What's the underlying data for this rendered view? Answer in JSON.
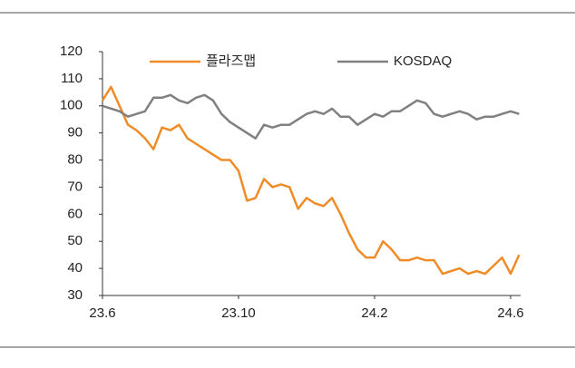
{
  "chart_data": {
    "type": "line",
    "categories": [
      "23.6",
      null,
      null,
      null,
      null,
      null,
      null,
      null,
      null,
      null,
      null,
      null,
      null,
      null,
      null,
      null,
      "23.10",
      null,
      null,
      null,
      null,
      null,
      null,
      null,
      null,
      null,
      null,
      null,
      null,
      null,
      null,
      null,
      "24.2",
      null,
      null,
      null,
      null,
      null,
      null,
      null,
      null,
      null,
      null,
      null,
      null,
      null,
      null,
      null,
      "24.6",
      null
    ],
    "series": [
      {
        "name": "플라즈맵",
        "color": "#f08c28",
        "values": [
          102,
          107,
          100,
          93,
          91,
          88,
          84,
          92,
          91,
          93,
          88,
          86,
          84,
          82,
          80,
          80,
          76,
          65,
          66,
          73,
          70,
          71,
          70,
          62,
          66,
          64,
          63,
          66,
          60,
          53,
          47,
          44,
          44,
          50,
          47,
          43,
          43,
          44,
          43,
          43,
          38,
          39,
          40,
          38,
          39,
          38,
          41,
          44,
          38,
          45
        ]
      },
      {
        "name": "KOSDAQ",
        "color": "#808080",
        "values": [
          100,
          99,
          98,
          96,
          97,
          98,
          103,
          103,
          104,
          102,
          101,
          103,
          104,
          102,
          97,
          94,
          92,
          90,
          88,
          93,
          92,
          93,
          93,
          95,
          97,
          98,
          97,
          99,
          96,
          96,
          93,
          95,
          97,
          96,
          98,
          98,
          100,
          102,
          101,
          97,
          96,
          97,
          98,
          97,
          95,
          96,
          96,
          97,
          98,
          97
        ]
      }
    ],
    "ylim": [
      30,
      120
    ],
    "yticks": [
      30,
      40,
      50,
      60,
      70,
      80,
      90,
      100,
      110,
      120
    ]
  }
}
